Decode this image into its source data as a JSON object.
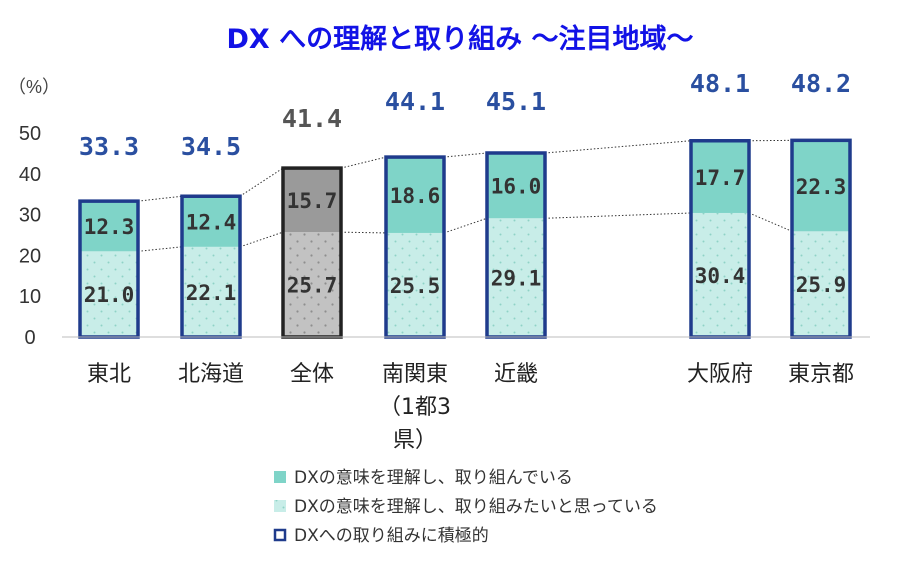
{
  "chart_data": {
    "type": "bar",
    "stacked": true,
    "title": "DX への理解と取り組み ～注目地域～",
    "yunit": "（%）",
    "ylim": [
      0,
      50
    ],
    "yticks": [
      "0",
      "10",
      "20",
      "30",
      "40",
      "50"
    ],
    "categories": [
      {
        "label": "東北",
        "lines": [
          "東北"
        ],
        "highlight": false
      },
      {
        "label": "北海道",
        "lines": [
          "北海道"
        ],
        "highlight": false
      },
      {
        "label": "全体",
        "lines": [
          "全体"
        ],
        "highlight": true
      },
      {
        "label": "南関東（1都3県）",
        "lines": [
          "南関東",
          "（1都3",
          "県）"
        ],
        "highlight": false
      },
      {
        "label": "近畿",
        "lines": [
          "近畿"
        ],
        "highlight": false
      },
      {
        "label": "大阪府",
        "lines": [
          "大阪府"
        ],
        "highlight": false
      },
      {
        "label": "東京都",
        "lines": [
          "東京都"
        ],
        "highlight": false
      }
    ],
    "series": [
      {
        "name": "DXの意味を理解し、取り組みたいと思っている",
        "values": [
          21.0,
          22.1,
          25.7,
          25.5,
          29.1,
          30.4,
          25.9
        ],
        "labels": [
          "21.0",
          "22.1",
          "25.7",
          "25.5",
          "29.1",
          "30.4",
          "25.9"
        ],
        "color": "#c8ede8"
      },
      {
        "name": "DXの意味を理解し、取り組んでいる",
        "values": [
          12.3,
          12.4,
          15.7,
          18.6,
          16.0,
          17.7,
          22.3
        ],
        "labels": [
          "12.3",
          "12.4",
          "15.7",
          "18.6",
          "16.0",
          "17.7",
          "22.3"
        ],
        "color": "#7fd4c8"
      }
    ],
    "totals": {
      "name": "DXへの取り組みに積極的",
      "values": [
        33.3,
        34.5,
        41.4,
        44.1,
        45.1,
        48.1,
        48.2
      ],
      "labels": [
        "33.3",
        "34.5",
        "41.4",
        "44.1",
        "45.1",
        "48.1",
        "48.2"
      ]
    },
    "legend": [
      {
        "label": "DXの意味を理解し、取り組んでいる",
        "swatch": "dark-teal"
      },
      {
        "label": "DXの意味を理解し、取り組みたいと思っている",
        "swatch": "light-teal"
      },
      {
        "label": "DXへの取り組みに積極的",
        "swatch": "outline"
      }
    ],
    "legend_position": "bottom",
    "colors": {
      "outline": "#1f3b8c",
      "highlight_bottom": "#c2c2c2",
      "highlight_top": "#9a9a9a",
      "highlight_outline": "#222222",
      "connector": "#333333"
    }
  }
}
